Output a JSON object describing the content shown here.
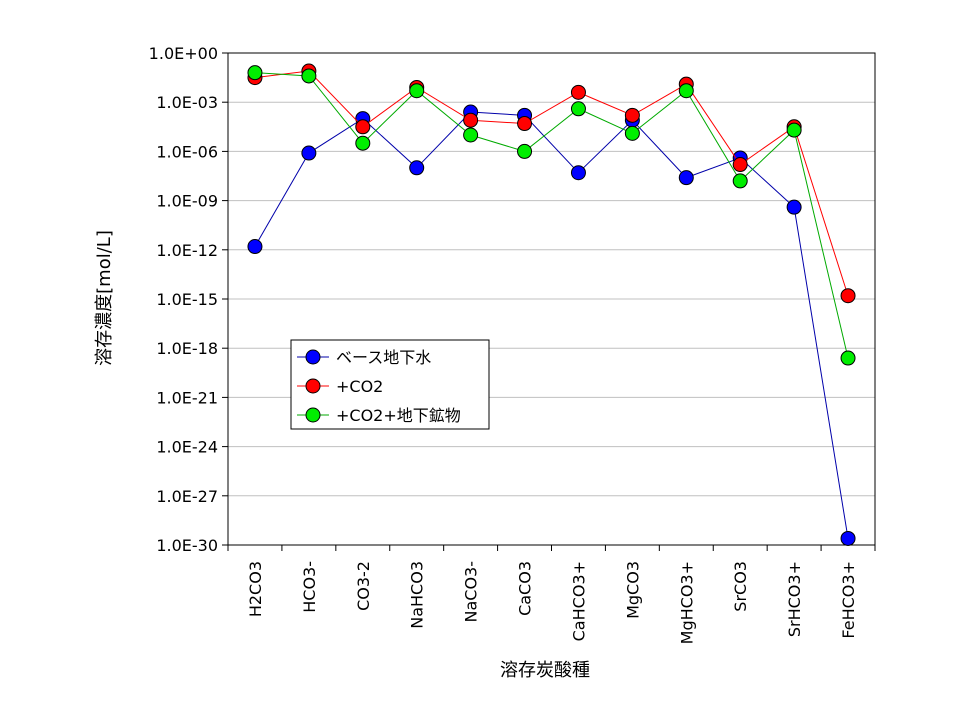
{
  "chart_data": {
    "type": "line",
    "xlabel": "溶存炭酸種",
    "ylabel": "溶存濃度[mol/L]",
    "y_scale": "log",
    "ylim": [
      1e-30,
      1
    ],
    "y_ticks": [
      "1.0E+00",
      "1.0E-03",
      "1.0E-06",
      "1.0E-09",
      "1.0E-12",
      "1.0E-15",
      "1.0E-18",
      "1.0E-21",
      "1.0E-24",
      "1.0E-27",
      "1.0E-30"
    ],
    "y_tick_exponents": [
      0,
      -3,
      -6,
      -9,
      -12,
      -15,
      -18,
      -21,
      -24,
      -27,
      -30
    ],
    "categories": [
      "H2CO3",
      "HCO3-",
      "CO3-2",
      "NaHCO3",
      "NaCO3-",
      "CaCO3",
      "CaHCO3+",
      "MgCO3",
      "MgHCO3+",
      "SrCO3",
      "SrHCO3+",
      "FeHCO3+"
    ],
    "grid": "horizontal",
    "legend_position": "left-center",
    "series": [
      {
        "name": "ベース地下水",
        "color": "#0000ff",
        "fill": "#0000ff",
        "line_color": "#0000aa",
        "log10_values": [
          -11.8,
          -6.1,
          -4.0,
          -7.0,
          -3.6,
          -3.8,
          -7.3,
          -4.1,
          -7.6,
          -6.4,
          -9.4,
          -29.6
        ]
      },
      {
        "name": "+CO2",
        "color": "#ff0000",
        "fill": "#ff0000",
        "line_color": "#ff0000",
        "log10_values": [
          -1.5,
          -1.1,
          -4.5,
          -2.1,
          -4.1,
          -4.3,
          -2.4,
          -3.8,
          -1.9,
          -6.8,
          -4.5,
          -14.8
        ]
      },
      {
        "name": "+CO2+地下鉱物",
        "color": "#00ee00",
        "fill": "#00ee00",
        "line_color": "#00aa00",
        "log10_values": [
          -1.2,
          -1.4,
          -5.5,
          -2.3,
          -5.0,
          -6.0,
          -3.4,
          -4.9,
          -2.3,
          -7.8,
          -4.7,
          -18.6
        ]
      }
    ]
  }
}
